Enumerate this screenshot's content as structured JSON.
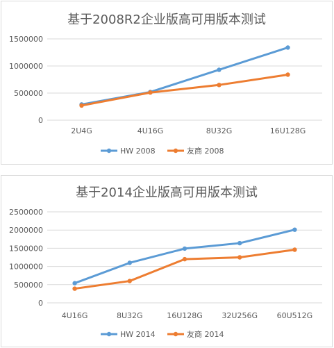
{
  "chart_data": [
    {
      "type": "line",
      "title": "基于2008R2企业版高可用版本测试",
      "categories": [
        "2U4G",
        "4U16G",
        "8U32G",
        "16U128G"
      ],
      "ylim": [
        0,
        1500000
      ],
      "yticks": [
        "0",
        "500000",
        "1000000",
        "1500000"
      ],
      "grid": true,
      "legend": "bottom",
      "series": [
        {
          "name": "HW 2008",
          "color": "#5b9bd5",
          "values": [
            290000,
            520000,
            930000,
            1340000
          ]
        },
        {
          "name": "友商 2008",
          "color": "#ed7d31",
          "values": [
            270000,
            510000,
            650000,
            840000
          ]
        }
      ]
    },
    {
      "type": "line",
      "title": "基于2014企业版高可用版本测试",
      "categories": [
        "4U16G",
        "8U32G",
        "16U128G",
        "32U256G",
        "60U512G"
      ],
      "ylim": [
        0,
        2500000
      ],
      "yticks": [
        "0",
        "500000",
        "1000000",
        "1500000",
        "2000000",
        "2500000"
      ],
      "grid": true,
      "legend": "bottom",
      "series": [
        {
          "name": "HW 2014",
          "color": "#5b9bd5",
          "values": [
            540000,
            1100000,
            1490000,
            1640000,
            2010000
          ]
        },
        {
          "name": "友商 2014",
          "color": "#ed7d31",
          "values": [
            390000,
            600000,
            1200000,
            1250000,
            1460000
          ]
        }
      ]
    }
  ]
}
